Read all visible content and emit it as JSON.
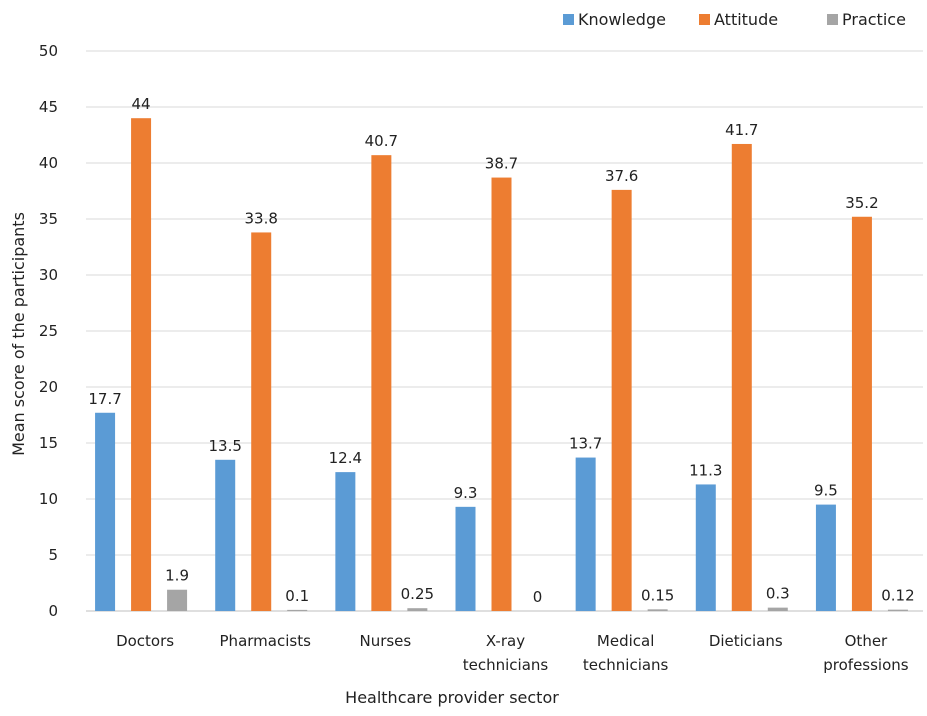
{
  "chart_data": {
    "type": "bar",
    "title": "",
    "xlabel": "Healthcare provider sector",
    "ylabel": "Mean score of the participants",
    "ylim": [
      0,
      50
    ],
    "yticks": [
      0,
      5,
      10,
      15,
      20,
      25,
      30,
      35,
      40,
      45,
      50
    ],
    "grid": true,
    "legend_position": "top-right",
    "categories": [
      [
        "Doctors"
      ],
      [
        "Pharmacists"
      ],
      [
        "Nurses"
      ],
      [
        "X-ray",
        "technicians"
      ],
      [
        "Medical",
        "technicians"
      ],
      [
        "Dieticians"
      ],
      [
        "Other",
        "professions"
      ]
    ],
    "series": [
      {
        "name": "Knowledge",
        "color": "#5B9BD5",
        "values": [
          17.7,
          13.5,
          12.4,
          9.3,
          13.7,
          11.3,
          9.5
        ],
        "labels": [
          "17.7",
          "13.5",
          "12.4",
          "9.3",
          "13.7",
          "11.3",
          "9.5"
        ]
      },
      {
        "name": "Attitude",
        "color": "#ED7D31",
        "values": [
          44,
          33.8,
          40.7,
          38.7,
          37.6,
          41.7,
          35.2
        ],
        "labels": [
          "44",
          "33.8",
          "40.7",
          "38.7",
          "37.6",
          "41.7",
          "35.2"
        ]
      },
      {
        "name": "Practice",
        "color": "#A5A5A5",
        "values": [
          1.9,
          0.1,
          0.25,
          0,
          0.15,
          0.3,
          0.12
        ],
        "labels": [
          "1.9",
          "0.1",
          "0.25",
          "0",
          "0.15",
          "0.3",
          "0.12"
        ]
      }
    ]
  }
}
